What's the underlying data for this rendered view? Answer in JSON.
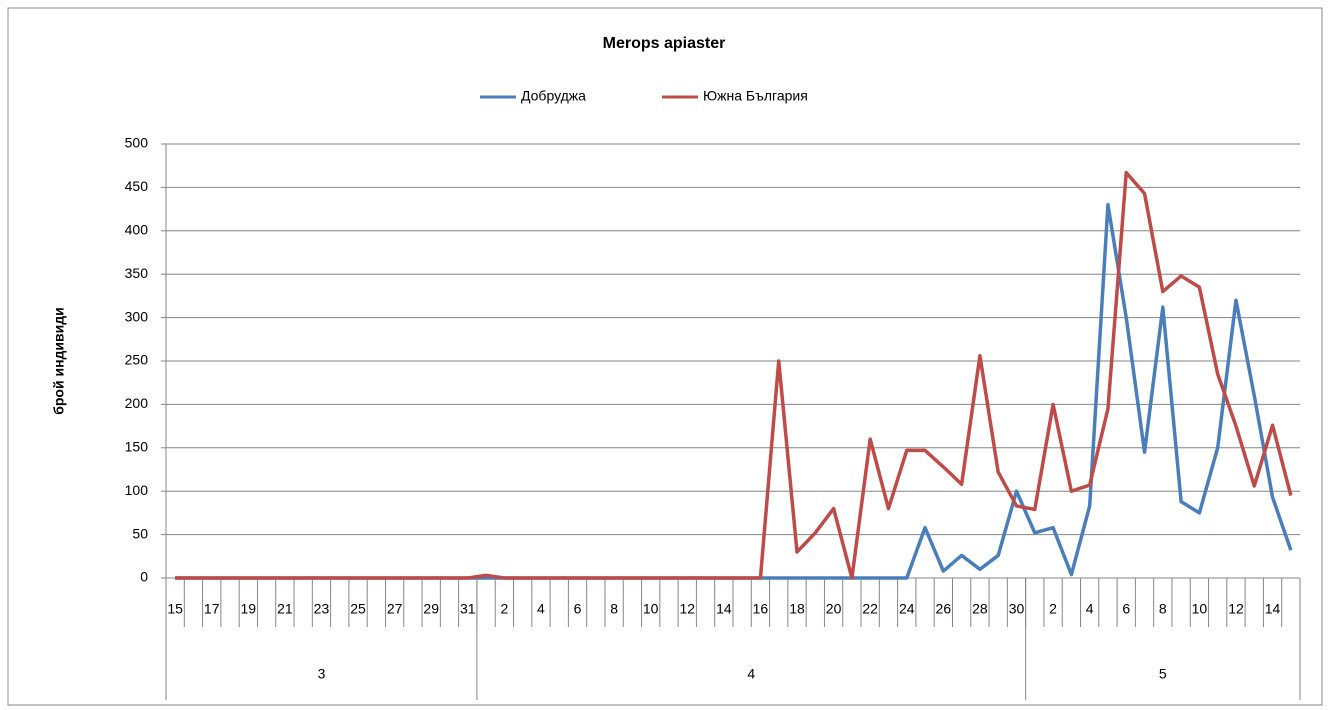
{
  "chart_data": {
    "type": "line",
    "title": "Merops apiaster",
    "y_label": "брой индивиди",
    "categories": [
      "15",
      null,
      "17",
      null,
      "19",
      null,
      "21",
      null,
      "23",
      null,
      "25",
      null,
      "27",
      null,
      "29",
      null,
      "31",
      null,
      "2",
      null,
      "4",
      null,
      "6",
      null,
      "8",
      null,
      "10",
      null,
      "12",
      null,
      "14",
      null,
      "16",
      null,
      "18",
      null,
      "20",
      null,
      "22",
      null,
      "24",
      null,
      "26",
      null,
      "28",
      null,
      "30",
      null,
      "2",
      null,
      "4",
      null,
      "6",
      null,
      "8",
      null,
      "10",
      null,
      "12",
      null,
      "14",
      null
    ],
    "groups": [
      {
        "label": "3",
        "count": 17
      },
      {
        "label": "4",
        "count": 30
      },
      {
        "label": "5",
        "count": 15
      }
    ],
    "series": [
      {
        "name": "Добруджа",
        "color": "#4a7ebb",
        "values": [
          0,
          0,
          0,
          0,
          0,
          0,
          0,
          0,
          0,
          0,
          0,
          0,
          0,
          0,
          0,
          0,
          0,
          0,
          0,
          0,
          0,
          0,
          0,
          0,
          0,
          0,
          0,
          0,
          0,
          0,
          0,
          0,
          0,
          0,
          0,
          0,
          0,
          0,
          0,
          0,
          0,
          58,
          8,
          26,
          10,
          26,
          100,
          52,
          58,
          4,
          83,
          430,
          300,
          145,
          312,
          88,
          75,
          150,
          320,
          210,
          93,
          32
        ]
      },
      {
        "name": "Южна България",
        "color": "#be4b48",
        "values": [
          0,
          0,
          0,
          0,
          0,
          0,
          0,
          0,
          0,
          0,
          0,
          0,
          0,
          0,
          0,
          0,
          0,
          3,
          0,
          0,
          0,
          0,
          0,
          0,
          0,
          0,
          0,
          0,
          0,
          0,
          0,
          0,
          0,
          250,
          30,
          52,
          80,
          0,
          160,
          80,
          147,
          147,
          128,
          108,
          256,
          122,
          83,
          79,
          200,
          100,
          107,
          195,
          467,
          443,
          330,
          348,
          335,
          235,
          175,
          106,
          176,
          95
        ]
      }
    ],
    "ylim": [
      0,
      500
    ],
    "yticks": [
      0,
      50,
      100,
      150,
      200,
      250,
      300,
      350,
      400,
      450,
      500
    ],
    "grid": true,
    "legend": "top"
  }
}
